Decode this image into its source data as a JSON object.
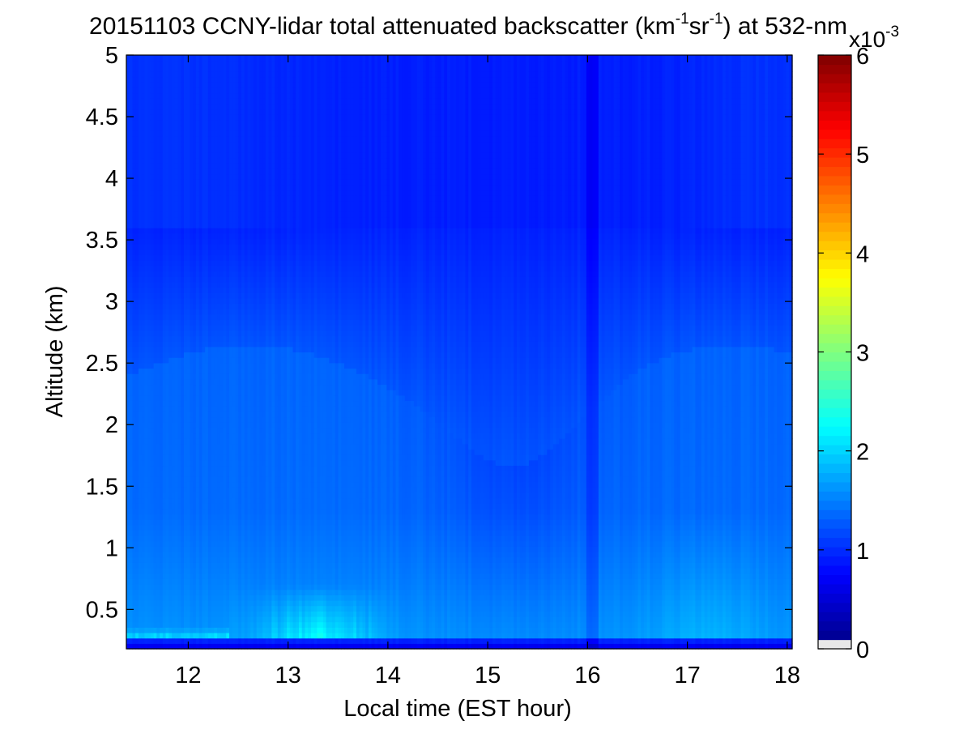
{
  "chart_data": {
    "type": "heatmap",
    "title": {
      "segments": [
        {
          "text": "20151103 CCNY-lidar total attenuated backscatter (km",
          "sup": false
        },
        {
          "text": "-1",
          "sup": true
        },
        {
          "text": "sr",
          "sup": false
        },
        {
          "text": "-1",
          "sup": true
        },
        {
          "text": ") at 532-nm",
          "sup": false
        }
      ]
    },
    "xlabel": "Local time (EST hour)",
    "ylabel": "Altitude (km)",
    "xlim": [
      11.38,
      18.05
    ],
    "ylim": [
      0.18,
      5
    ],
    "xticks": [
      12,
      13,
      14,
      15,
      16,
      17,
      18
    ],
    "xtick_labels": [
      "12",
      "13",
      "14",
      "15",
      "16",
      "17",
      "18"
    ],
    "yticks": [
      0.5,
      1,
      1.5,
      2,
      2.5,
      3,
      3.5,
      4,
      4.5,
      5
    ],
    "ytick_labels": [
      "0.5",
      "1",
      "1.5",
      "2",
      "2.5",
      "3",
      "3.5",
      "4",
      "4.5",
      "5"
    ],
    "colorbar": {
      "colormap": "jet",
      "range": [
        0,
        6
      ],
      "ticks": [
        0,
        1,
        2,
        3,
        4,
        5,
        6
      ],
      "tick_labels": [
        "0",
        "1",
        "2",
        "3",
        "4",
        "5",
        "6"
      ],
      "scale_base": "x10",
      "scale_exp": "-3",
      "below_min_color": "#e8e8e8"
    },
    "field_description": {
      "units_scale": 0.001,
      "background_value": 1.15,
      "upper_clear_air_value": 0.95,
      "boundary_layer_value": 1.6,
      "max_value_near_surface": 2.9,
      "dark_stripe_time": 16.05,
      "surface_dip_altitude": 0.18
    },
    "grid": false,
    "legend": "colorbar-right"
  }
}
